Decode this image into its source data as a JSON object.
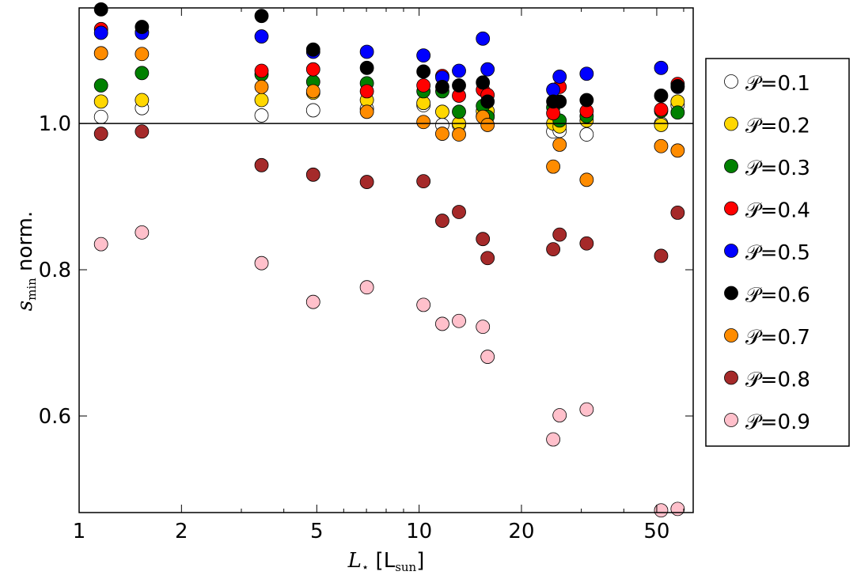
{
  "chart_data": {
    "type": "scatter",
    "xlabel": "L⋆ [Lsun]",
    "xlabel_main": "L",
    "xlabel_sub": "⋆",
    "xlabel_unit": "[L",
    "xlabel_unit_sub": "sun",
    "xlabel_unit_close": "]",
    "ylabel_main": "s",
    "ylabel_sub": "min",
    "ylabel_rest": " norm.",
    "xscale": "log",
    "xlim": [
      1,
      64
    ],
    "ylim": [
      0.468,
      1.158
    ],
    "xticks": [
      1,
      2,
      5,
      10,
      20,
      50
    ],
    "xtick_labels": [
      "1",
      "2",
      "5",
      "10",
      "20",
      "50"
    ],
    "yticks": [
      0.6,
      0.8,
      1.0
    ],
    "ytick_labels": [
      "0.6",
      "0.8",
      "1.0"
    ],
    "reference_line_y": 1.0,
    "legend_position": "outside-right",
    "x": [
      1.16,
      1.53,
      3.44,
      4.88,
      7.02,
      10.3,
      11.7,
      13.1,
      15.4,
      15.9,
      24.8,
      25.9,
      31.1,
      51.5,
      57.6
    ],
    "series": [
      {
        "name": "𝒫=0.1",
        "color": "#ffffff",
        "values": [
          1.009,
          1.021,
          1.011,
          1.018,
          1.02,
          1.025,
          0.998,
          0.998,
          1.01,
          1.01,
          0.989,
          0.99,
          0.985,
          1.0,
          1.025
        ]
      },
      {
        "name": "𝒫=0.2",
        "color": "#ffd700",
        "values": [
          1.03,
          1.032,
          1.032,
          1.042,
          1.032,
          1.028,
          1.016,
          1.0,
          1.017,
          1.017,
          1.0,
          0.996,
          1.004,
          0.998,
          1.03
        ]
      },
      {
        "name": "𝒫=0.3",
        "color": "#008000",
        "values": [
          1.052,
          1.069,
          1.067,
          1.057,
          1.055,
          1.044,
          1.044,
          1.016,
          1.024,
          1.009,
          1.022,
          1.004,
          1.01,
          1.017,
          1.015
        ]
      },
      {
        "name": "𝒫=0.4",
        "color": "#ff0000",
        "values": [
          1.129,
          1.125,
          1.072,
          1.074,
          1.044,
          1.052,
          1.065,
          1.038,
          1.046,
          1.039,
          1.014,
          1.05,
          1.017,
          1.019,
          1.054
        ]
      },
      {
        "name": "𝒫=0.5",
        "color": "#0000ff",
        "values": [
          1.124,
          1.124,
          1.119,
          1.098,
          1.098,
          1.093,
          1.063,
          1.072,
          1.116,
          1.074,
          1.046,
          1.064,
          1.068,
          1.076,
          1.05
        ]
      },
      {
        "name": "𝒫=0.6",
        "color": "#000000",
        "values": [
          1.156,
          1.132,
          1.147,
          1.101,
          1.076,
          1.071,
          1.05,
          1.052,
          1.056,
          1.03,
          1.03,
          1.03,
          1.032,
          1.038,
          1.051
        ]
      },
      {
        "name": "𝒫=0.7",
        "color": "#ff8c00",
        "values": [
          1.096,
          1.095,
          1.05,
          1.044,
          1.016,
          1.002,
          0.986,
          0.985,
          1.009,
          0.998,
          0.941,
          0.971,
          0.923,
          0.969,
          0.963
        ]
      },
      {
        "name": "𝒫=0.8",
        "color": "#a52a2a",
        "values": [
          0.986,
          0.989,
          0.943,
          0.93,
          0.92,
          0.921,
          0.867,
          0.879,
          0.842,
          0.816,
          0.828,
          0.848,
          0.836,
          0.819,
          0.878
        ]
      },
      {
        "name": "𝒫=0.9",
        "color": "#ffc0cb",
        "values": [
          0.835,
          0.851,
          0.809,
          0.756,
          0.776,
          0.752,
          0.726,
          0.73,
          0.722,
          0.681,
          0.568,
          0.601,
          0.609,
          0.471,
          0.473
        ]
      }
    ]
  }
}
